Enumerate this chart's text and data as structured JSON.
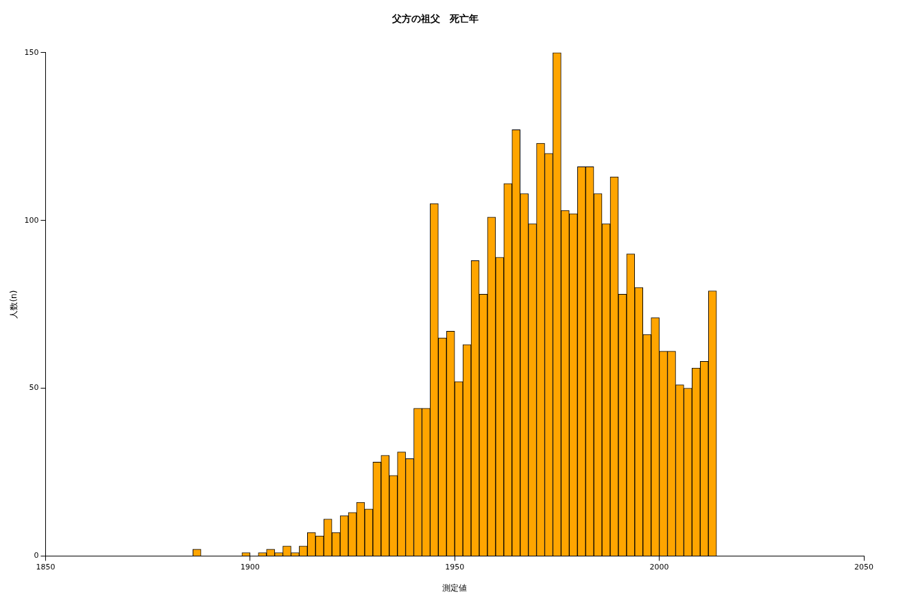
{
  "chart_data": {
    "type": "histogram",
    "title": "父方の祖父　死亡年",
    "xlabel": "測定値",
    "ylabel": "人数(n)",
    "bins": [
      1886,
      1888,
      1890,
      1892,
      1894,
      1896,
      1898,
      1900,
      1902,
      1904,
      1906,
      1908,
      1910,
      1912,
      1914,
      1916,
      1918,
      1920,
      1922,
      1924,
      1926,
      1928,
      1930,
      1932,
      1934,
      1936,
      1938,
      1940,
      1942,
      1944,
      1946,
      1948,
      1950,
      1952,
      1954,
      1956,
      1958,
      1960,
      1962,
      1964,
      1966,
      1968,
      1970,
      1972,
      1974,
      1976,
      1978,
      1980,
      1982,
      1984,
      1986,
      1988,
      1990,
      1992,
      1994,
      1996,
      1998,
      2000,
      2002,
      2004,
      2006,
      2008,
      2010,
      2012,
      2014
    ],
    "values": [
      2,
      0,
      0,
      0,
      0,
      0,
      1,
      0,
      1,
      2,
      1,
      3,
      1,
      3,
      7,
      6,
      11,
      7,
      12,
      13,
      16,
      14,
      28,
      30,
      24,
      31,
      29,
      44,
      44,
      105,
      65,
      67,
      52,
      63,
      88,
      78,
      101,
      89,
      111,
      127,
      108,
      99,
      123,
      120,
      150,
      103,
      102,
      116,
      116,
      108,
      99,
      113,
      78,
      90,
      80,
      66,
      71,
      61,
      61,
      51,
      50,
      56,
      58,
      79
    ],
    "color": "#ffa500",
    "xlim": [
      1850,
      2050
    ],
    "xticks": [
      1850,
      1900,
      1950,
      2000,
      2050
    ],
    "ylim": [
      0,
      150
    ],
    "yticks": [
      0,
      50,
      100,
      150
    ],
    "grid": false,
    "legend": false
  }
}
